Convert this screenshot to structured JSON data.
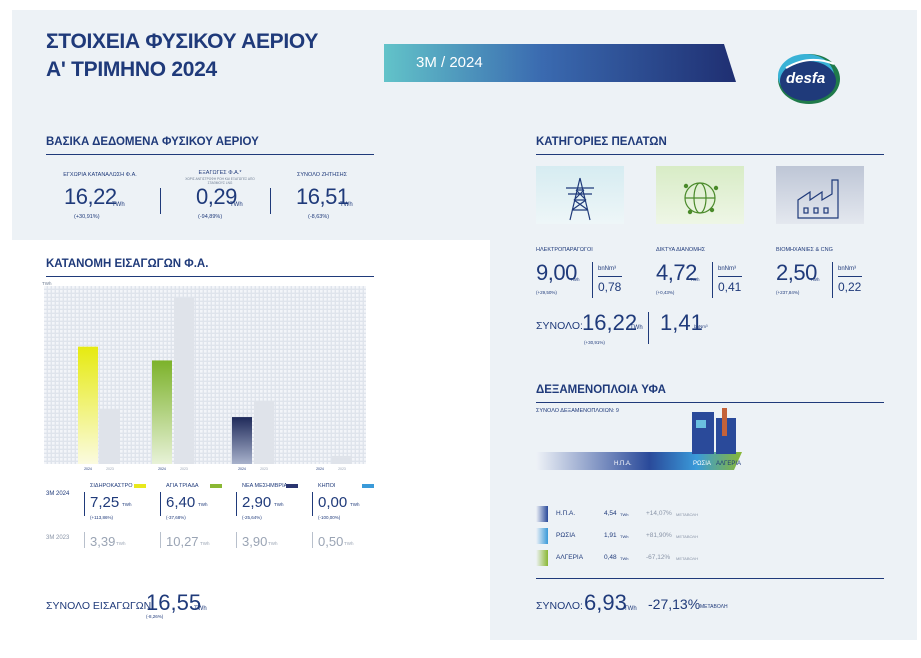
{
  "header": {
    "title_line1": "ΣΤΟΙΧΕΙΑ ΦΥΣΙΚΟΥ ΑΕΡΙΟΥ",
    "title_line2": "Α' ΤΡΙΜΗΝΟ 2024",
    "period": "3M / 2024",
    "logo_text": "desfa"
  },
  "basic": {
    "heading": "ΒΑΣΙΚΑ ΔΕΔΟΜΕΝΑ ΦΥΣΙΚΟΥ ΑΕΡΙΟΥ",
    "items": [
      {
        "label": "ΕΓΧΩΡΙΑ ΚΑΤΑΝΑΛΩΣΗ Φ.Α.",
        "value": "16,22",
        "unit": "TWh",
        "change": "(+30,91%)"
      },
      {
        "label": "ΕΞΑΓΩΓΕΣ Φ.Α.*",
        "note": "ΧΩΡΙΣ ΑΝΤΙΣΤΡΟΦΗ ΡΟΗ ΚΑΙ ΕΞΑΓΩΓΕΣ ΑΠΟ ΣΤΑΘΜΟΥΣ LNG",
        "value": "0,29",
        "unit": "TWh",
        "change": "(-94,89%)"
      },
      {
        "label": "ΣΥΝΟΛΟ ΖΗΤΗΣΗΣ",
        "value": "16,51",
        "unit": "TWh",
        "change": "(-8,63%)"
      }
    ]
  },
  "imports": {
    "heading": "ΚΑΤΑΝΟΜΗ ΕΙΣΑΓΩΓΩΝ Φ.Α.",
    "axis_unit": "TWh",
    "row_current_label": "3M 2024",
    "row_prev_label": "3M 2023",
    "points": [
      {
        "name": "ΣΙΔΗΡΟΚΑΣΤΡΟ",
        "current": "7,25",
        "unit": "TWh",
        "change": "(+113,86%)",
        "prev": "3,39",
        "color": "#e8e81c",
        "year_cur": "2024",
        "year_prev": "2023"
      },
      {
        "name": "ΑΓΙΑ ΤΡΙΑΔΑ",
        "current": "6,40",
        "unit": "TWh",
        "change": "(-37,68%)",
        "prev": "10,27",
        "color": "#8ab833",
        "year_cur": "2024",
        "year_prev": "2023"
      },
      {
        "name": "ΝΕΑ ΜΕΣΗΜΒΡΙΑ",
        "current": "2,90",
        "unit": "TWh",
        "change": "(-25,64%)",
        "prev": "3,90",
        "color": "#2a3570",
        "year_cur": "2024",
        "year_prev": "2023"
      },
      {
        "name": "ΚΗΠΟΙ",
        "current": "0,00",
        "unit": "TWh",
        "change": "(-100,00%)",
        "prev": "0,50",
        "color": "#3a9ad9",
        "year_cur": "2024",
        "year_prev": "2023"
      }
    ],
    "total_label": "ΣΥΝΟΛΟ ΕΙΣΑΓΩΓΩΝ:",
    "total_value": "16,55",
    "total_unit": "TWh",
    "total_change": "(-8,26%)"
  },
  "chart_data": {
    "type": "bar",
    "categories": [
      "ΣΙΔΗΡΟΚΑΣΤΡΟ",
      "ΑΓΙΑ ΤΡΙΑΔΑ",
      "ΝΕΑ ΜΕΣΗΜΒΡΙΑ",
      "ΚΗΠΟΙ"
    ],
    "series": [
      {
        "name": "2024",
        "values": [
          7.25,
          6.4,
          2.9,
          0.0
        ]
      },
      {
        "name": "2023",
        "values": [
          3.39,
          10.27,
          3.9,
          0.5
        ]
      }
    ],
    "ylabel": "TWh",
    "ylim": [
      0,
      11
    ]
  },
  "customers": {
    "heading": "ΚΑΤΗΓΟΡΙΕΣ ΠΕΛΑΤΩΝ",
    "items": [
      {
        "label": "ΗΛΕΚΤΡΟΠΑΡΑΓΩΓΟΙ",
        "value": "9,00",
        "unit": "TWh",
        "change": "(+29,50%)",
        "bn_unit": "bnNm³",
        "bn_value": "0,78",
        "icon": "power-pylon-icon"
      },
      {
        "label": "ΔΙΚΤΥΑ ΔΙΑΝΟΜΗΣ",
        "value": "4,72",
        "unit": "TWh",
        "change": "(+0,43%)",
        "bn_unit": "bnNm³",
        "bn_value": "0,41",
        "icon": "network-globe-icon"
      },
      {
        "label": "ΒΙΟΜΗΧΑΝΙΕΣ & CNG",
        "value": "2,50",
        "unit": "TWh",
        "change": "(+237,84%)",
        "bn_unit": "bnNm³",
        "bn_value": "0,22",
        "icon": "factory-icon"
      }
    ],
    "total_label": "ΣΥΝΟΛΟ:",
    "total_value": "16,22",
    "total_unit": "TWh",
    "total_change": "(+30,91%)",
    "total_bn": "1,41",
    "total_bn_unit": "bnNm³"
  },
  "lng": {
    "heading": "ΔΕΞΑΜΕΝΟΠΛΟΙΑ ΥΦΑ",
    "count_label": "ΣΥΝΟΛΟ ΔΕΞΑΜΕΝΟΠΛΟΙΩΝ: 9",
    "ship_labels": [
      "Η.Π.Α.",
      "ΡΩΣΙΑ",
      "ΑΛΓΕΡΙΑ"
    ],
    "rows": [
      {
        "country": "Η.Π.Α.",
        "value": "4,54",
        "unit": "TWh",
        "change": "+14,07%",
        "change_label": "ΜΕΤΑΒΟΛΗ",
        "color": "#2a4a9a"
      },
      {
        "country": "ΡΩΣΙΑ",
        "value": "1,91",
        "unit": "TWh",
        "change": "+81,90%",
        "change_label": "ΜΕΤΑΒΟΛΗ",
        "color": "#3a9ad9"
      },
      {
        "country": "ΑΛΓΕΡΙΑ",
        "value": "0,48",
        "unit": "TWh",
        "change": "-67,12%",
        "change_label": "ΜΕΤΑΒΟΛΗ",
        "color": "#8ab833"
      }
    ],
    "total_label": "ΣΥΝΟΛΟ:",
    "total_value": "6,93",
    "total_unit": "TWh",
    "total_change": "-27,13%",
    "total_change_label": "ΜΕΤΑΒΟΛΗ"
  }
}
